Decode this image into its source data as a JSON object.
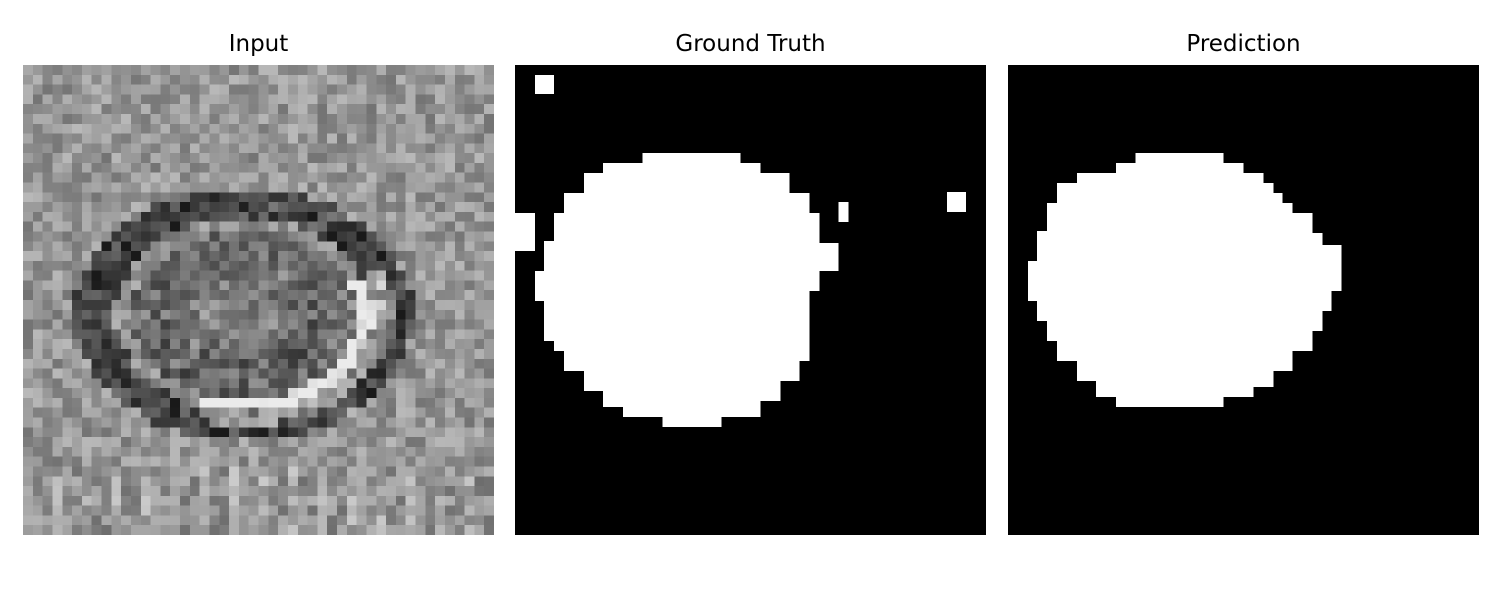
{
  "panels": [
    {
      "id": "input",
      "title": "Input"
    },
    {
      "id": "ground_truth",
      "title": "Ground Truth"
    },
    {
      "id": "prediction",
      "title": "Prediction"
    }
  ],
  "colors": {
    "background": "#ffffff",
    "mask_background": "#000000",
    "mask_foreground": "#ffffff",
    "title_text": "#000000"
  },
  "colormap": "grayscale"
}
